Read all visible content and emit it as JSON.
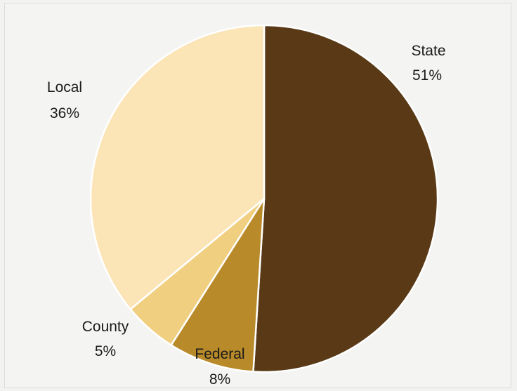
{
  "chart_data": {
    "type": "pie",
    "slices": [
      {
        "name": "State",
        "label": "State",
        "value": 51,
        "value_label": "51%",
        "color": "#5a3a16"
      },
      {
        "name": "Federal",
        "label": "Federal",
        "value": 8,
        "value_label": "8%",
        "color": "#b88a2a"
      },
      {
        "name": "County",
        "label": "County",
        "value": 5,
        "value_label": "5%",
        "color": "#f0cf80"
      },
      {
        "name": "Local",
        "label": "Local",
        "value": 36,
        "value_label": "36%",
        "color": "#fbe4b6"
      }
    ],
    "start_angle_deg": 0,
    "direction": "clockwise",
    "legend": "none",
    "grid": false
  }
}
